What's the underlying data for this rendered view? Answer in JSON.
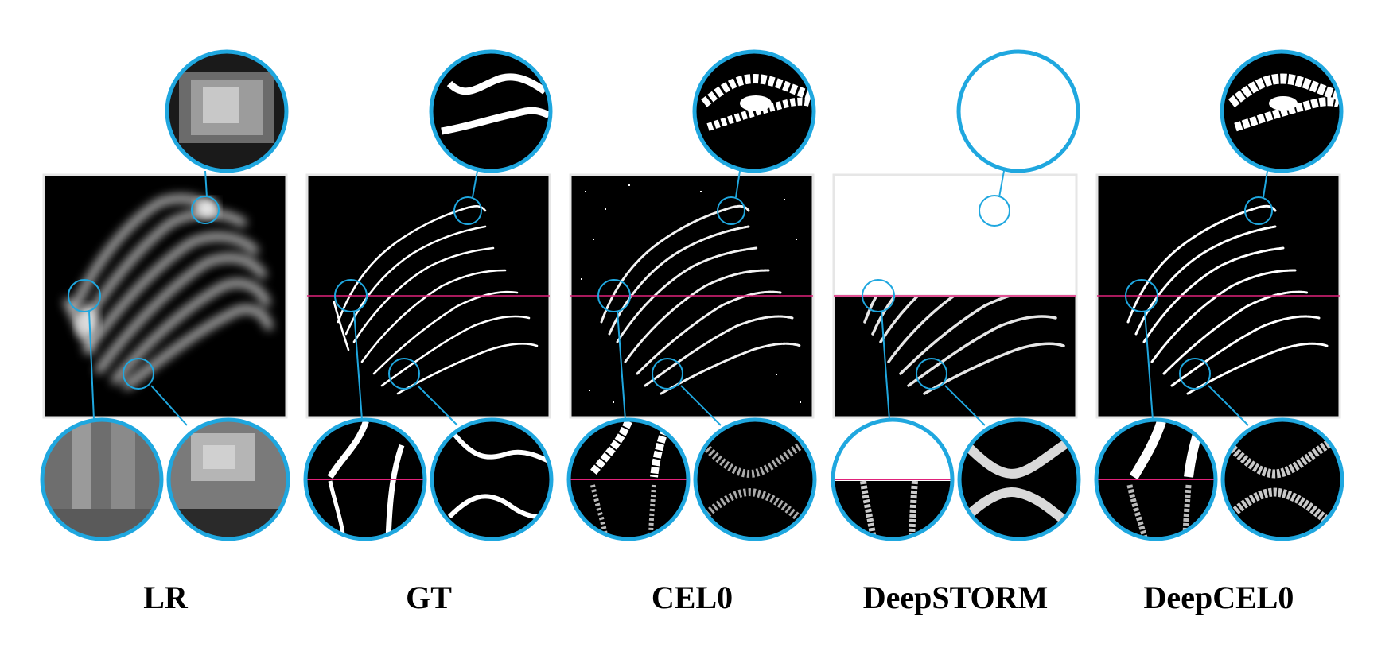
{
  "colors": {
    "zoom_circle": "#1fa7df",
    "cut_line": "#e0227a",
    "panel_background": "#000000",
    "structure": "#ffffff",
    "label_text": "#000000"
  },
  "panels": [
    {
      "label": "LR"
    },
    {
      "label": "GT"
    },
    {
      "label": "CEL0"
    },
    {
      "label": "DeepSTORM"
    },
    {
      "label": "DeepCEL0"
    }
  ]
}
